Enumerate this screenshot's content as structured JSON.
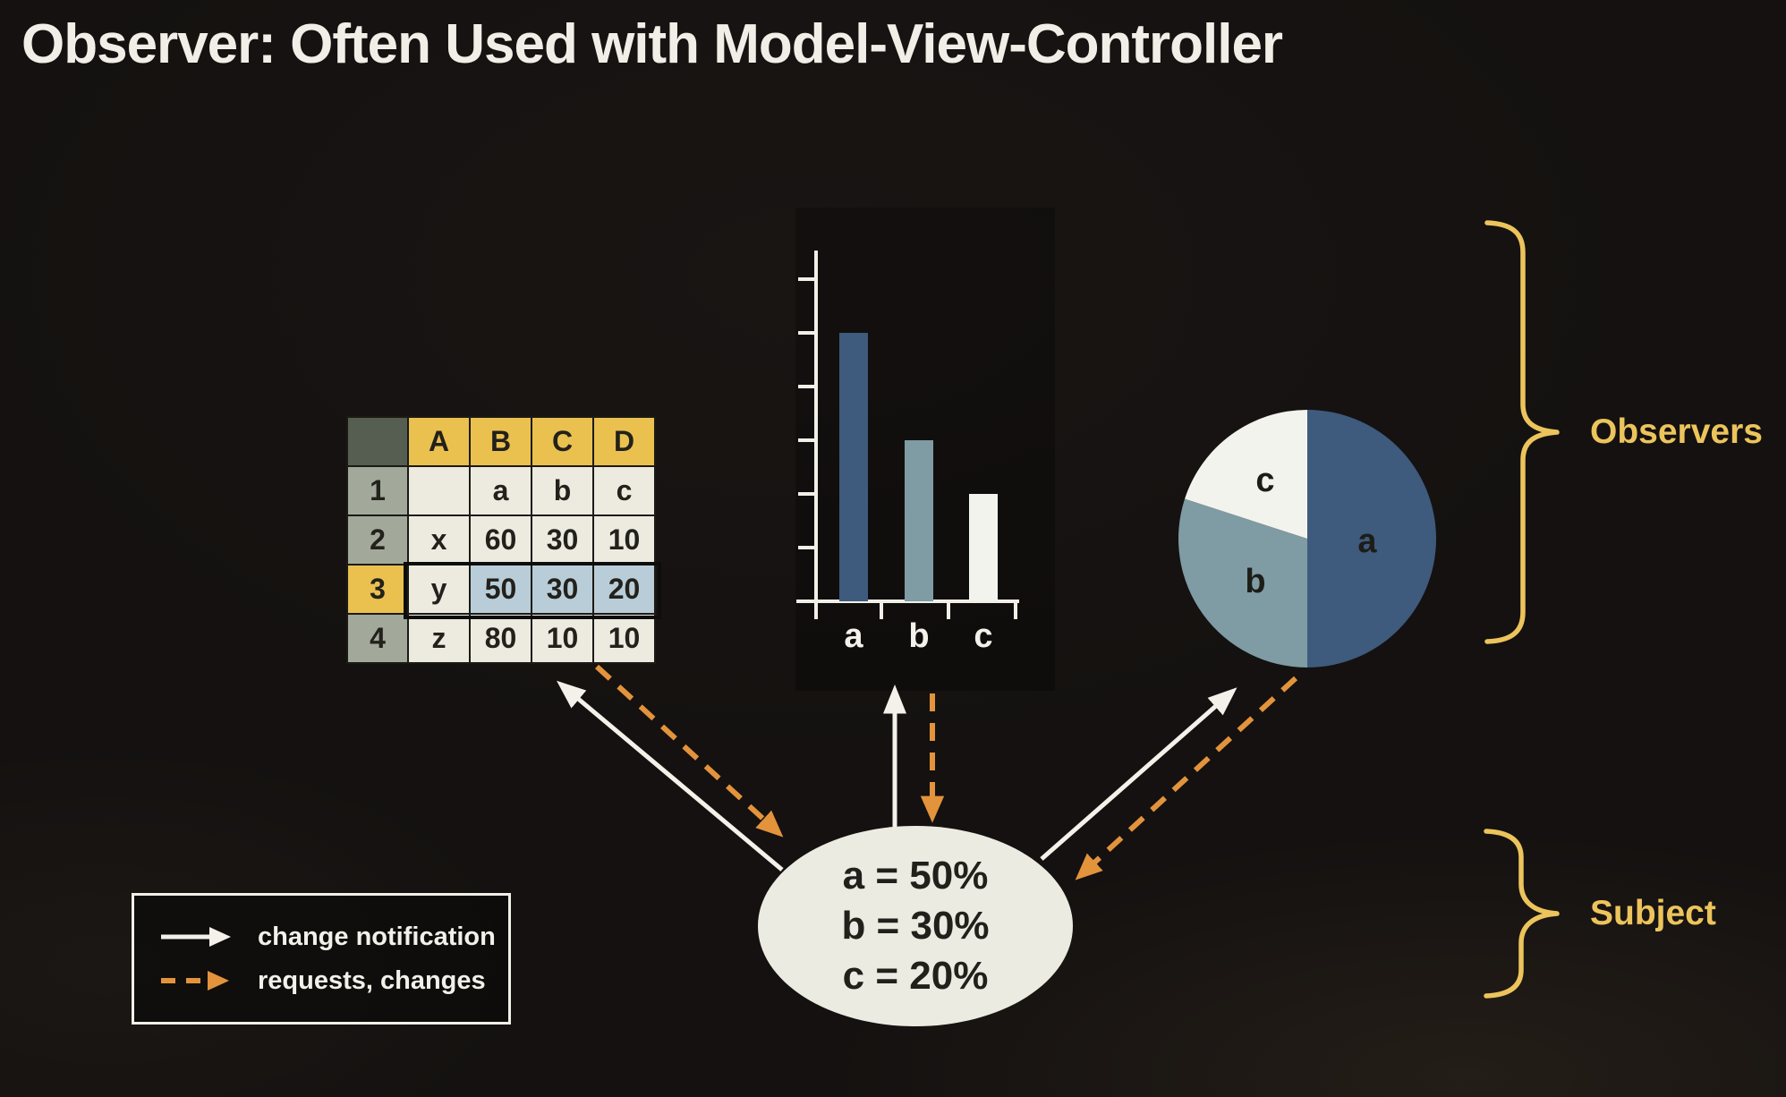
{
  "header": {
    "title": "Observer: Often Used with Model-View-Controller"
  },
  "groups": {
    "observers_label": "Observers",
    "subject_label": "Subject"
  },
  "subject_node": {
    "lines": [
      "a = 50%",
      "b = 30%",
      "c = 20%"
    ]
  },
  "legend": {
    "items": [
      {
        "style": "solid-white-arrow",
        "label": "change notification"
      },
      {
        "style": "dashed-orange-arrow",
        "label": "requests, changes"
      }
    ]
  },
  "chart_data": [
    {
      "type": "table",
      "title": "spreadsheet observer view",
      "col_headers": [
        "A",
        "B",
        "C",
        "D"
      ],
      "row_headers": [
        "1",
        "2",
        "3",
        "4"
      ],
      "rows": [
        [
          "",
          "a",
          "b",
          "c"
        ],
        [
          "x",
          "60",
          "30",
          "10"
        ],
        [
          "y",
          "50",
          "30",
          "20"
        ],
        [
          "z",
          "80",
          "10",
          "10"
        ]
      ],
      "selected_row_header": "3",
      "selected_range": "A3:D3"
    },
    {
      "type": "bar",
      "title": "bar chart observer view",
      "categories": [
        "a",
        "b",
        "c"
      ],
      "values": [
        50,
        30,
        20
      ],
      "xlabel": "",
      "ylabel": "",
      "ylim": [
        0,
        60
      ],
      "ytick_step": 10,
      "ytick_labels_shown": false,
      "colors": [
        "#3e5a7d",
        "#7f9ba4",
        "#f3f3ed"
      ]
    },
    {
      "type": "pie",
      "title": "pie chart observer view",
      "labels": [
        "a",
        "b",
        "c"
      ],
      "values": [
        50,
        30,
        20
      ],
      "start_angle": "12 o'clock",
      "direction": "clockwise",
      "colors": [
        "#3e5a7d",
        "#7f9ba4",
        "#f3f3ed"
      ]
    }
  ],
  "colors": {
    "background": "#141110",
    "title_text": "#f1eee7",
    "accent_gold": "#ecc45c",
    "arrow_white": "#f4f1ea",
    "arrow_orange": "#e2933c",
    "table_col_header_fill": "#eac14f",
    "table_row_header_fill": "#a2a99b",
    "table_cell_fill": "#edebe0",
    "table_selected_cell_fill": "#b9cdd9",
    "table_corner_fill": "#565e52",
    "subject_fill": "#ebebe1"
  }
}
